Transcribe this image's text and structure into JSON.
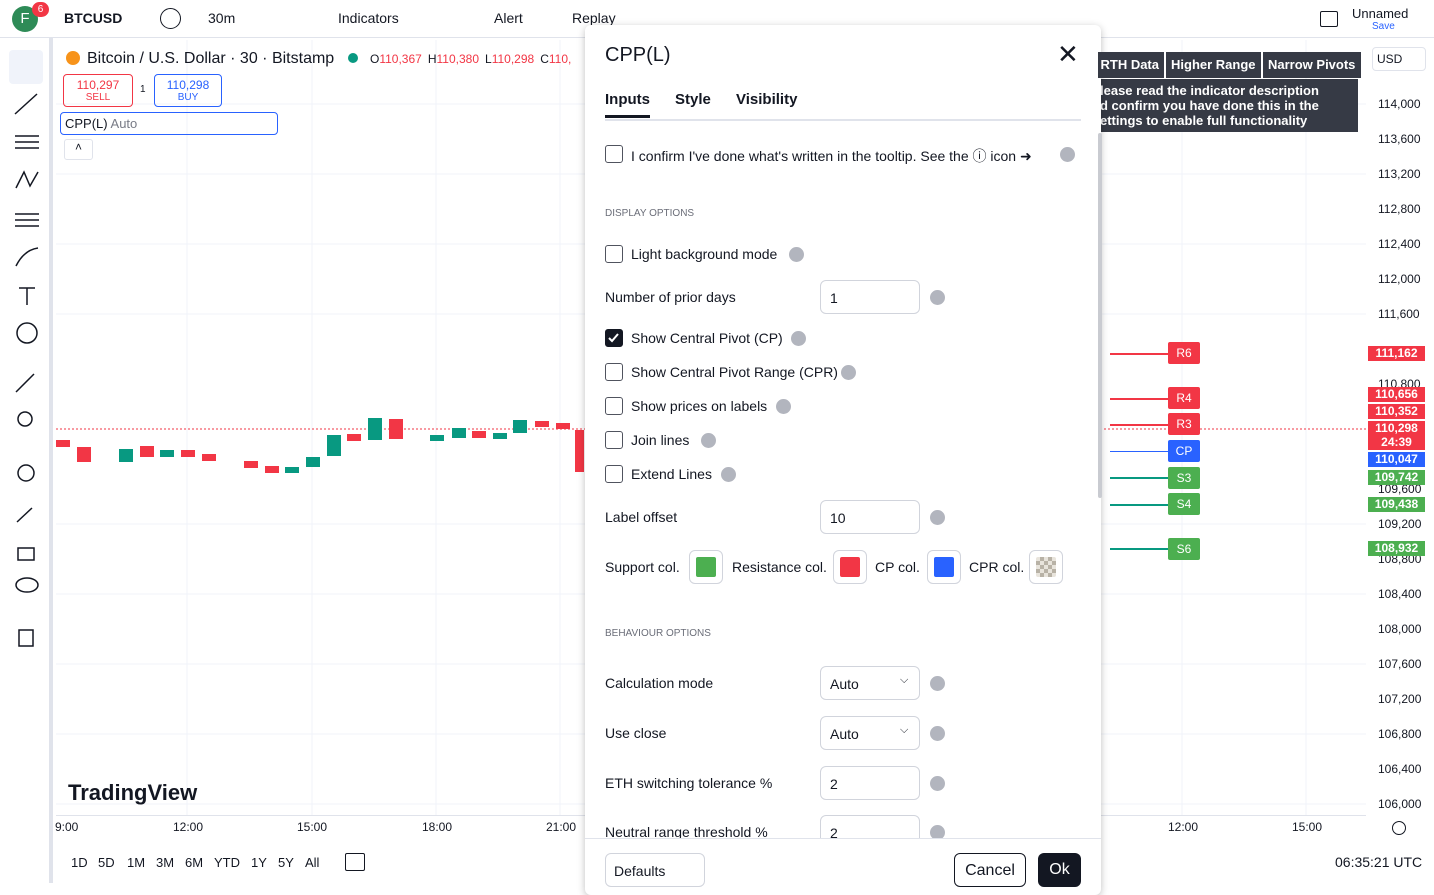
{
  "header": {
    "avatar": "F",
    "badge": "6",
    "symbol": "BTCUSD",
    "interval": "30m",
    "indicators": "Indicators",
    "alert": "Alert",
    "replay": "Replay",
    "layout_name": "Unnamed",
    "save": "Save"
  },
  "legend": {
    "title": "Bitcoin / U.S. Dollar · 30 · Bitstamp",
    "ohlc": [
      {
        "key": "O",
        "value": "110,367"
      },
      {
        "key": "H",
        "value": "110,380"
      },
      {
        "key": "L",
        "value": "110,298"
      },
      {
        "key": "C",
        "value": "110,"
      }
    ],
    "sell": {
      "price": "110,297",
      "label": "SELL"
    },
    "spread": "1",
    "buy": {
      "price": "110,298",
      "label": "BUY"
    },
    "indicator": "CPP(L)",
    "indicator_param": "Auto"
  },
  "banner": {
    "buttons": [
      "RTH Data",
      "Higher Range",
      "Narrow Pivots"
    ],
    "message": [
      "lease read the indicator description",
      "d confirm you have done this in the",
      "ettings to enable full functionality"
    ]
  },
  "price_axis": {
    "currency": "USD",
    "ticks": [
      "114,000",
      "113,600",
      "113,200",
      "112,800",
      "112,400",
      "112,000",
      "111,600",
      "110,800",
      "109,600",
      "109,200",
      "108,800",
      "108,400",
      "108,000",
      "107,600",
      "107,200",
      "106,800",
      "106,400",
      "106,000"
    ],
    "labels": [
      {
        "text": "111,162",
        "kind": "red"
      },
      {
        "text": "110,656",
        "kind": "red"
      },
      {
        "text": "110,352",
        "kind": "red"
      },
      {
        "text": "110,298",
        "kind": "red"
      },
      {
        "text": "24:39",
        "kind": "red"
      },
      {
        "text": "110,047",
        "kind": "blue"
      },
      {
        "text": "109,742",
        "kind": "green"
      },
      {
        "text": "109,438",
        "kind": "green"
      },
      {
        "text": "108,932",
        "kind": "green"
      }
    ]
  },
  "pivots": [
    "R6",
    "R4",
    "R3",
    "CP",
    "S3",
    "S4",
    "S6"
  ],
  "time_axis": [
    "9:00",
    "12:00",
    "15:00",
    "18:00",
    "21:00",
    "12:00",
    "15:00"
  ],
  "ranges": [
    "1D",
    "5D",
    "1M",
    "3M",
    "6M",
    "YTD",
    "1Y",
    "5Y",
    "All"
  ],
  "clock": "06:35:21 UTC",
  "watermark": "TradingView",
  "dialog": {
    "title": "CPP(L)",
    "tabs": [
      "Inputs",
      "Style",
      "Visibility"
    ],
    "confirm": "I confirm I've done what's written in the tooltip. See the ⓘ icon ➜",
    "display_section": "DISPLAY OPTIONS",
    "light_bg": "Light background mode",
    "prior_days": {
      "label": "Number of prior days",
      "value": 1
    },
    "show_cp": "Show Central Pivot (CP)",
    "show_cpr": "Show Central Pivot Range (CPR)",
    "show_prices": "Show prices on labels",
    "join_lines": "Join lines",
    "extend_lines": "Extend Lines",
    "label_offset": {
      "label": "Label offset",
      "value": 10
    },
    "colors": [
      "Support col.",
      "Resistance col.",
      "CP col.",
      "CPR col."
    ],
    "behaviour_section": "BEHAVIOUR OPTIONS",
    "calc_mode": {
      "label": "Calculation mode",
      "value": "Auto"
    },
    "use_close": {
      "label": "Use close",
      "value": "Auto"
    },
    "eth_tolerance": {
      "label": "ETH switching tolerance %",
      "value": 2
    },
    "neutral_threshold": {
      "label": "Neutral range threshold %",
      "value": 2
    },
    "footer": {
      "defaults": "Defaults",
      "cancel": "Cancel",
      "ok": "Ok"
    }
  }
}
